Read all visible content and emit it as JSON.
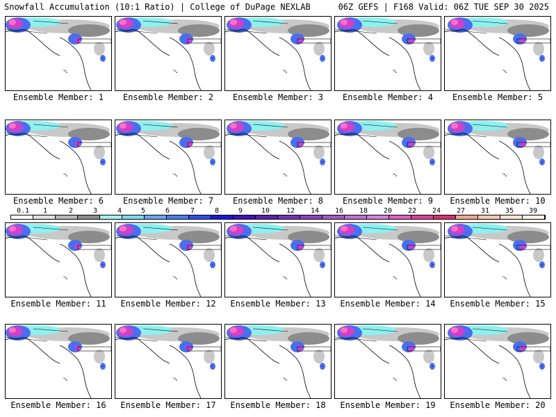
{
  "header": {
    "left_title": "Snowfall Accumulation (10:1 Ratio) | College of DuPage NEXLAB",
    "right_title": "06Z GEFS | F168 Valid: 06Z TUE SEP 30 2025"
  },
  "panels": [
    {
      "label": "Ensemble Member: 1"
    },
    {
      "label": "Ensemble Member: 2"
    },
    {
      "label": "Ensemble Member: 3"
    },
    {
      "label": "Ensemble Member: 4"
    },
    {
      "label": "Ensemble Member: 5"
    },
    {
      "label": "Ensemble Member: 6"
    },
    {
      "label": "Ensemble Member: 7"
    },
    {
      "label": "Ensemble Member: 8"
    },
    {
      "label": "Ensemble Member: 9"
    },
    {
      "label": "Ensemble Member: 10"
    },
    {
      "label": "Ensemble Member: 11"
    },
    {
      "label": "Ensemble Member: 12"
    },
    {
      "label": "Ensemble Member: 13"
    },
    {
      "label": "Ensemble Member: 14"
    },
    {
      "label": "Ensemble Member: 15"
    },
    {
      "label": "Ensemble Member: 16"
    },
    {
      "label": "Ensemble Member: 17"
    },
    {
      "label": "Ensemble Member: 18"
    },
    {
      "label": "Ensemble Member: 19"
    },
    {
      "label": "Ensemble Member: 20"
    }
  ],
  "color_scale": {
    "labels": [
      "0.1",
      "1",
      "2",
      "3",
      "4",
      "5",
      "6",
      "7",
      "8",
      "9",
      "10",
      "12",
      "14",
      "16",
      "18",
      "20",
      "22",
      "24",
      "27",
      "31",
      "35",
      "39"
    ],
    "colors": [
      "#ffffff",
      "#e0e0e0",
      "#b8b8b8",
      "#8c8c8c",
      "#a8f0f0",
      "#7ed8f0",
      "#6aa6f0",
      "#4a7ef0",
      "#2a4ef0",
      "#1818e0",
      "#4010c0",
      "#6020b0",
      "#7830b8",
      "#9040c0",
      "#a858c8",
      "#c070d0",
      "#d880d8",
      "#e060c0",
      "#e04098",
      "#d83070",
      "#f0a890",
      "#f8c8b0",
      "#fde2cf",
      "#fff2e6"
    ]
  },
  "map_colors": {
    "light_snow": "#c8c8c8",
    "mid_snow": "#8c8c8c",
    "cyan": "#8ef0f0",
    "blue": "#4a6ef0",
    "magenta": "#d040c8",
    "pink": "#ff70c8"
  }
}
